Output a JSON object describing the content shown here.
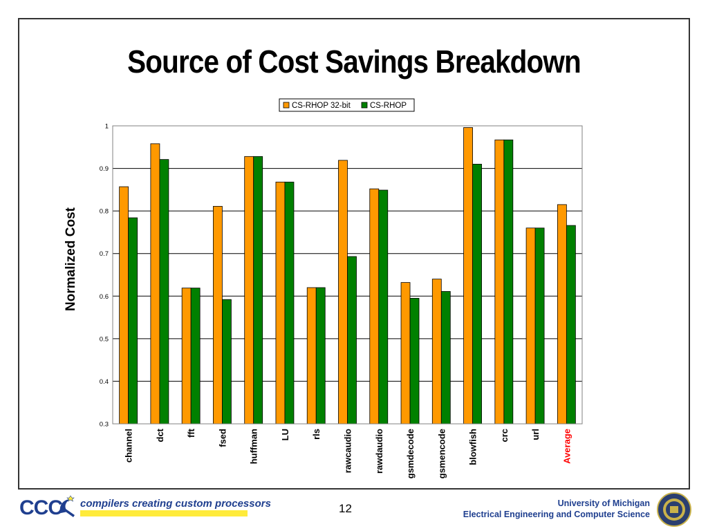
{
  "slide": {
    "title": "Source of Cost Savings Breakdown",
    "page_number": "12"
  },
  "footer": {
    "logo_text": "CCC",
    "tagline": "compilers creating custom processors",
    "university": "University of Michigan",
    "department": "Electrical Engineering and Computer Science"
  },
  "colors": {
    "series_1": "#ff9900",
    "series_2": "#008000",
    "highlight_label": "#ff0000",
    "logo_blue": "#1f3f8f",
    "logo_yellow": "#ffeb3b"
  },
  "chart_data": {
    "type": "bar",
    "title": "",
    "xlabel": "",
    "ylabel": "Normalized Cost",
    "ylim": [
      0.3,
      1
    ],
    "yticks": [
      "0.3",
      "0.4",
      "0.5",
      "0.6",
      "0.7",
      "0.8",
      "0.9",
      "1"
    ],
    "grid": true,
    "legend": "top-center",
    "categories": [
      "channel",
      "dct",
      "fft",
      "fsed",
      "huffman",
      "LU",
      "rls",
      "rawcaudio",
      "rawdaudio",
      "gsmdecode",
      "gsmencode",
      "blowfish",
      "crc",
      "url",
      "Average"
    ],
    "highlight_category": "Average",
    "series": [
      {
        "name": "CS-RHOP 32-bit",
        "values": [
          0.857,
          0.958,
          0.619,
          0.811,
          0.928,
          0.868,
          0.62,
          0.919,
          0.852,
          0.632,
          0.64,
          0.996,
          0.967,
          0.76,
          0.815
        ]
      },
      {
        "name": "CS-RHOP",
        "values": [
          0.784,
          0.921,
          0.619,
          0.592,
          0.928,
          0.868,
          0.62,
          0.693,
          0.849,
          0.595,
          0.611,
          0.91,
          0.967,
          0.76,
          0.766
        ]
      }
    ]
  }
}
